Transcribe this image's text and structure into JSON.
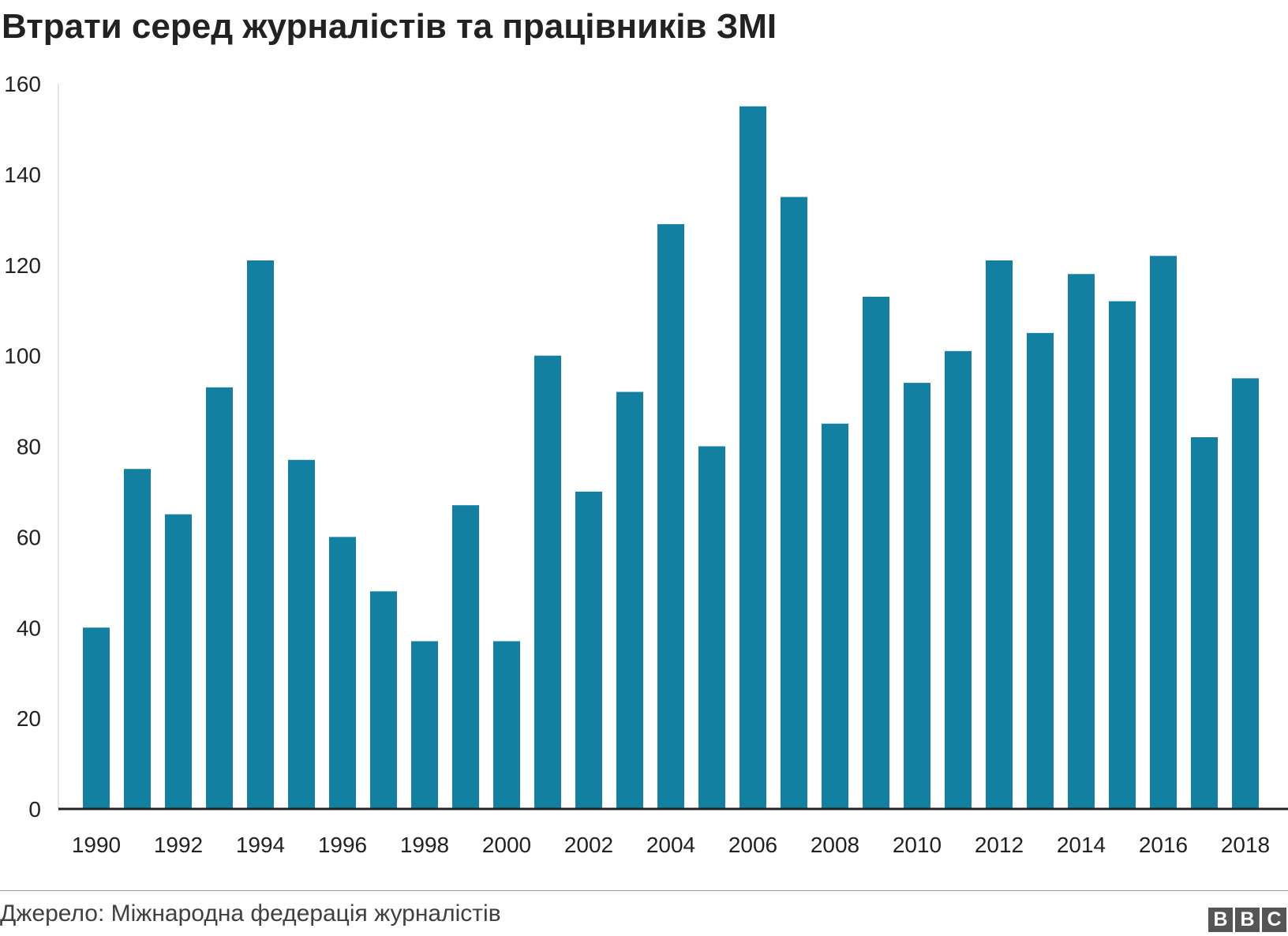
{
  "chart_data": {
    "type": "bar",
    "title": "Втрати серед журналістів та працівників ЗМІ",
    "xlabel": "",
    "ylabel": "",
    "ylim": [
      0,
      160
    ],
    "yticks": [
      "0",
      "20",
      "40",
      "60",
      "80",
      "100",
      "120",
      "140",
      "160"
    ],
    "categories": [
      "1990",
      "1991",
      "1992",
      "1993",
      "1994",
      "1995",
      "1996",
      "1997",
      "1998",
      "1999",
      "2000",
      "2001",
      "2002",
      "2003",
      "2004",
      "2005",
      "2006",
      "2007",
      "2008",
      "2009",
      "2010",
      "2011",
      "2012",
      "2013",
      "2014",
      "2015",
      "2016",
      "2017",
      "2018"
    ],
    "xtick_labels": [
      "1990",
      "1992",
      "1994",
      "1996",
      "1998",
      "2000",
      "2002",
      "2004",
      "2006",
      "2008",
      "2010",
      "2012",
      "2014",
      "2016",
      "2018"
    ],
    "values": [
      40,
      75,
      65,
      93,
      121,
      77,
      60,
      48,
      37,
      67,
      37,
      100,
      70,
      92,
      129,
      80,
      155,
      135,
      85,
      113,
      94,
      101,
      121,
      105,
      118,
      112,
      122,
      82,
      95
    ],
    "grid": false,
    "bar_color": "#1380a1"
  },
  "footer": {
    "source": "Джерело: Міжнародна федерація журналістів",
    "logo_letters": [
      "B",
      "B",
      "C"
    ]
  }
}
